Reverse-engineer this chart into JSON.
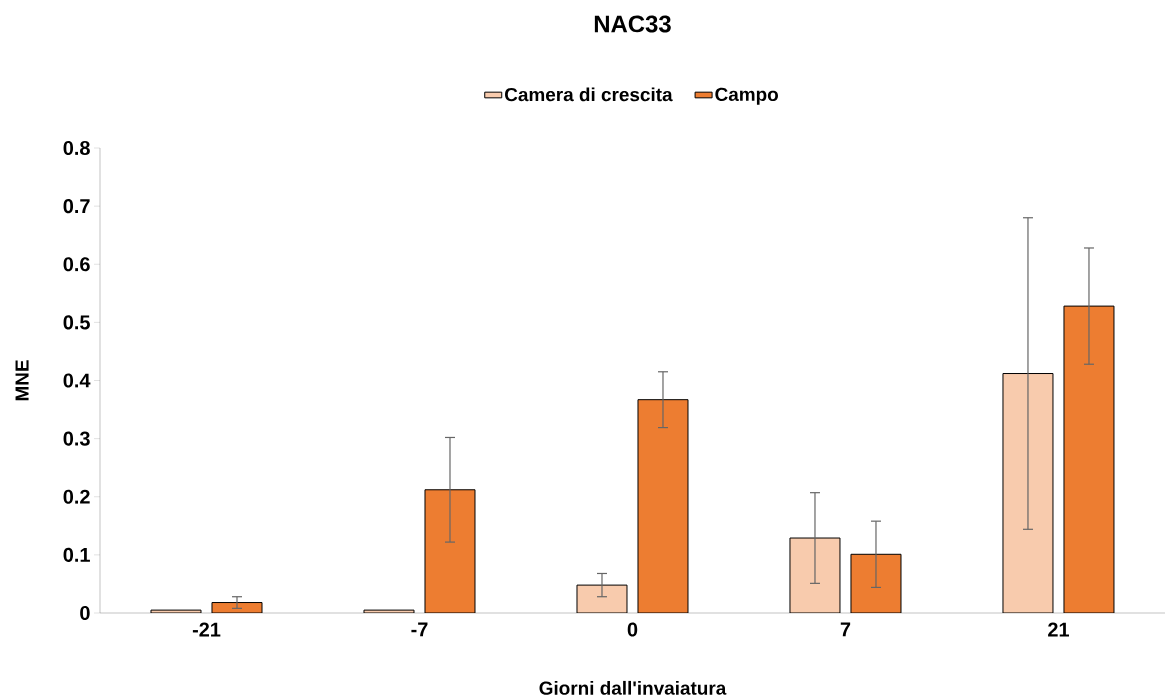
{
  "chart_data": {
    "type": "bar",
    "title": "NAC33",
    "xlabel": "Giorni dall'invaiatura",
    "ylabel": "MNE",
    "categories": [
      "-21",
      "-7",
      "0",
      "7",
      "21"
    ],
    "series": [
      {
        "name": "Camera di crescita",
        "color": "#f8cbad",
        "values": [
          0.005,
          0.005,
          0.048,
          0.129,
          0.412
        ],
        "errors": [
          null,
          null,
          0.02,
          0.078,
          0.268
        ]
      },
      {
        "name": "Campo",
        "color": "#ed7d31",
        "values": [
          0.018,
          0.212,
          0.367,
          0.101,
          0.528
        ],
        "errors": [
          0.01,
          0.09,
          0.048,
          0.057,
          0.1
        ]
      }
    ],
    "ylim": [
      0,
      0.8
    ],
    "yticks": [
      0,
      0.1,
      0.2,
      0.3,
      0.4,
      0.5,
      0.6,
      0.7,
      0.8
    ],
    "legend": "top"
  }
}
